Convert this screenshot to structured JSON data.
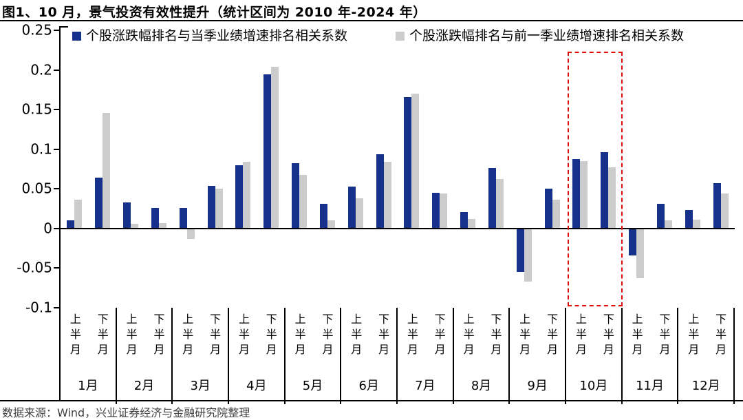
{
  "title": "图1、10 月，景气投资有效性提升（统计区间为 2010 年-2024 年）",
  "footer": {
    "source_text": "数据来源：Wind，兴业证券经济与金融研究院整理"
  },
  "colors": {
    "series_current": "#16318c",
    "series_previous": "#cccccc",
    "highlight": "#e00b0b",
    "axis": "#000000",
    "footer_text": "#404040"
  },
  "chart_data": {
    "type": "bar",
    "title": "图1、10 月，景气投资有效性提升（统计区间为 2010 年-2024 年）",
    "legend_position": "top",
    "grid": false,
    "ylim": [
      -0.1,
      0.25
    ],
    "y_ticks": [
      0.25,
      0.2,
      0.15,
      0.1,
      0.05,
      0,
      -0.05,
      -0.1
    ],
    "months": [
      "1月",
      "2月",
      "3月",
      "4月",
      "5月",
      "6月",
      "7月",
      "8月",
      "9月",
      "10月",
      "11月",
      "12月"
    ],
    "half_month_labels": [
      "上半月",
      "下半月"
    ],
    "categories": [
      "1月上半月",
      "1月下半月",
      "2月上半月",
      "2月下半月",
      "3月上半月",
      "3月下半月",
      "4月上半月",
      "4月下半月",
      "5月上半月",
      "5月下半月",
      "6月上半月",
      "6月下半月",
      "7月上半月",
      "7月下半月",
      "8月上半月",
      "8月下半月",
      "9月上半月",
      "9月下半月",
      "10月上半月",
      "10月下半月",
      "11月上半月",
      "11月下半月",
      "12月上半月",
      "12月下半月"
    ],
    "series": [
      {
        "name": "个股涨跌幅排名与当季业绩增速排名相关系数",
        "color": "#16318c",
        "values": [
          0.01,
          0.064,
          0.033,
          0.026,
          0.026,
          0.054,
          0.08,
          0.194,
          0.082,
          0.031,
          0.053,
          0.094,
          0.166,
          0.045,
          0.021,
          0.076,
          -0.055,
          0.05,
          0.088,
          0.096,
          -0.034,
          0.031,
          0.023,
          0.057
        ]
      },
      {
        "name": "个股涨跌幅排名与前一季业绩增速排名相关系数",
        "color": "#cccccc",
        "values": [
          0.036,
          0.146,
          0.006,
          0.007,
          -0.013,
          0.05,
          0.084,
          0.204,
          0.068,
          0.01,
          0.038,
          0.084,
          0.17,
          0.044,
          0.012,
          0.062,
          -0.067,
          0.036,
          0.085,
          0.077,
          -0.063,
          0.01,
          0.011,
          0.044
        ]
      }
    ],
    "highlight": {
      "type": "dashed-rect",
      "month": "10月",
      "month_index": 9,
      "color": "#e00b0b"
    }
  }
}
